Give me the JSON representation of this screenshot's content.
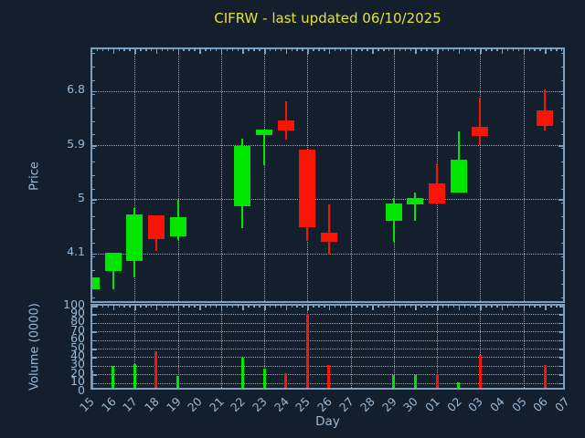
{
  "title": "CIFRW - last updated 06/10/2025",
  "axes": {
    "price_label": "Price",
    "volume_label": "Volume (0000)",
    "day_label": "Day"
  },
  "colors": {
    "background": "#131f2d",
    "up": "#00e600",
    "down": "#f91505",
    "spine": "#7fa0bd",
    "tick_label": "#9ab9d6",
    "grid": "#cdd6df",
    "title": "#e5e135"
  },
  "chart_data": [
    {
      "type": "candlestick",
      "title": "CIFRW - last updated 06/10/2025",
      "xlabel": "Day",
      "ylabel": "Price",
      "ylim": [
        3.25,
        7.49
      ],
      "yticks": [
        4.1,
        5,
        5.9,
        6.8
      ],
      "grid": true,
      "legend": "none",
      "categories": [
        "15",
        "16",
        "17",
        "18",
        "19",
        "20",
        "21",
        "22",
        "23",
        "24",
        "25",
        "26",
        "27",
        "28",
        "29",
        "30",
        "01",
        "02",
        "03",
        "04",
        "05",
        "06",
        "07"
      ],
      "ohlc_order": [
        "open",
        "high",
        "low",
        "close"
      ],
      "ohlc": [
        [
          3.51,
          3.71,
          3.51,
          3.71
        ],
        [
          3.81,
          4.11,
          3.51,
          4.11
        ],
        [
          3.98,
          4.85,
          3.71,
          4.75
        ],
        [
          4.74,
          4.74,
          4.15,
          4.34
        ],
        [
          4.38,
          4.99,
          4.33,
          4.7
        ],
        null,
        null,
        [
          4.89,
          6.01,
          4.52,
          5.88
        ],
        [
          6.06,
          6.16,
          5.57,
          6.16
        ],
        [
          6.31,
          6.63,
          5.99,
          6.14
        ],
        [
          5.83,
          5.83,
          4.31,
          4.54
        ],
        [
          4.44,
          4.92,
          4.09,
          4.29
        ],
        null,
        null,
        [
          4.64,
          5.02,
          4.29,
          4.93
        ],
        [
          4.92,
          5.12,
          4.64,
          5.02
        ],
        [
          5.26,
          5.6,
          4.92,
          4.93
        ],
        [
          5.11,
          6.12,
          5.11,
          5.66
        ],
        [
          6.2,
          6.68,
          5.9,
          6.05
        ],
        null,
        null,
        [
          6.47,
          6.83,
          6.14,
          6.22
        ],
        null
      ]
    },
    {
      "type": "bar",
      "ylabel": "Volume (0000)",
      "ylim": [
        0,
        100
      ],
      "yticks": [
        0,
        10,
        20,
        30,
        40,
        50,
        60,
        70,
        80,
        90,
        100
      ],
      "grid": true,
      "categories": [
        "15",
        "16",
        "17",
        "18",
        "19",
        "20",
        "21",
        "22",
        "23",
        "24",
        "25",
        "26",
        "27",
        "28",
        "29",
        "30",
        "01",
        "02",
        "03",
        "04",
        "05",
        "06",
        "07"
      ],
      "values": [
        25,
        30,
        32,
        47,
        18,
        null,
        null,
        39,
        27,
        21,
        90,
        31,
        null,
        null,
        19,
        19,
        20,
        11,
        43,
        null,
        null,
        31,
        null
      ]
    }
  ]
}
